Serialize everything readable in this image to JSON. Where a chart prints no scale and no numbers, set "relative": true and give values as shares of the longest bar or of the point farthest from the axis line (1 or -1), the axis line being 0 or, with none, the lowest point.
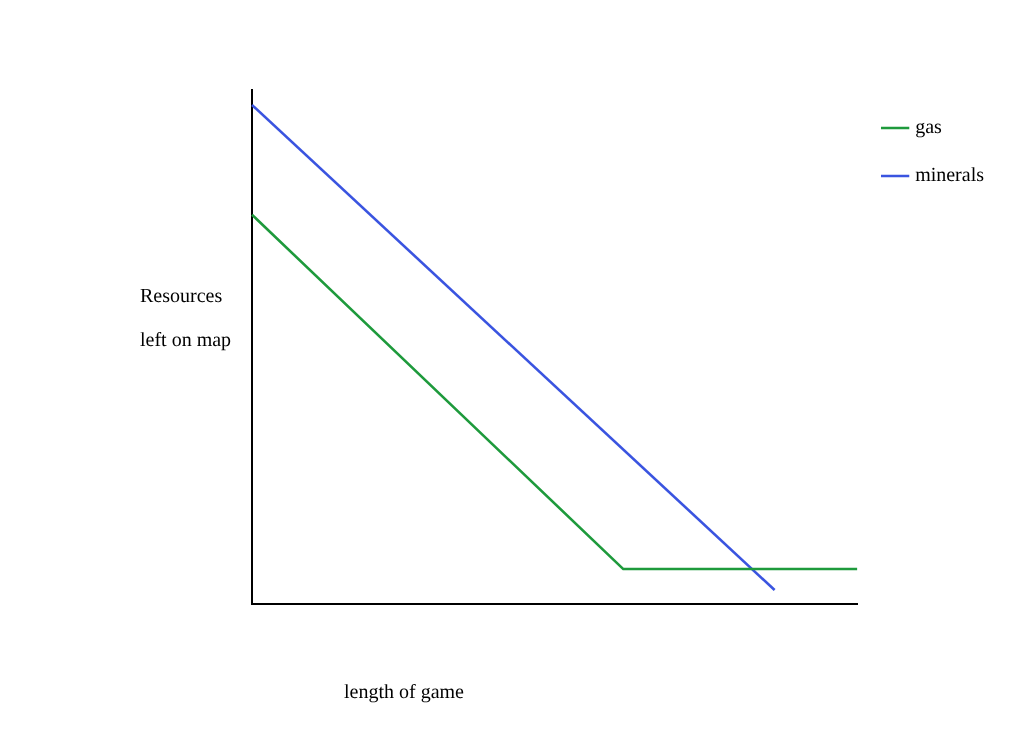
{
  "chart_data": {
    "type": "line",
    "relative": true,
    "xlabel": "length of game",
    "ylabel": "Resources\nleft on map",
    "categories": [
      null,
      null,
      null,
      null,
      null,
      null,
      null,
      null,
      null,
      null,
      null,
      null,
      null,
      null,
      null,
      null,
      null,
      null,
      null,
      null,
      null,
      null,
      null,
      null,
      null,
      null,
      null,
      null,
      null,
      null,
      null,
      null,
      null,
      null,
      null,
      null,
      null,
      null,
      null,
      null,
      null,
      null,
      null,
      null,
      null
    ],
    "series": [
      {
        "name": "gas",
        "color": "#1e9a3c",
        "values": [
          0.78,
          null,
          null,
          null,
          null,
          null,
          null,
          null,
          null,
          null,
          null,
          null,
          null,
          null,
          null,
          null,
          null,
          null,
          null,
          null,
          null,
          null,
          null,
          null,
          null,
          null,
          null,
          0.07,
          null,
          null,
          null,
          null,
          null,
          null,
          null,
          null,
          null,
          null,
          null,
          null,
          null,
          null,
          null,
          null,
          0.07
        ]
      },
      {
        "name": "minerals",
        "color": "#3a54e0",
        "values": [
          1,
          null,
          null,
          null,
          null,
          null,
          null,
          null,
          null,
          null,
          null,
          null,
          null,
          null,
          null,
          null,
          null,
          null,
          null,
          null,
          null,
          null,
          null,
          null,
          null,
          null,
          null,
          null,
          null,
          null,
          null,
          null,
          null,
          null,
          null,
          null,
          null,
          null,
          0.028,
          null,
          null,
          null,
          null,
          null,
          null
        ]
      }
    ],
    "legend": "top right",
    "grid": false,
    "marker": "none",
    "line_style": "solid"
  }
}
